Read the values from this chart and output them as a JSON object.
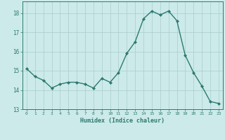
{
  "x": [
    0,
    1,
    2,
    3,
    4,
    5,
    6,
    7,
    8,
    9,
    10,
    11,
    12,
    13,
    14,
    15,
    16,
    17,
    18,
    19,
    20,
    21,
    22,
    23
  ],
  "y": [
    15.1,
    14.7,
    14.5,
    14.1,
    14.3,
    14.4,
    14.4,
    14.3,
    14.1,
    14.6,
    14.4,
    14.9,
    15.9,
    16.5,
    17.7,
    18.1,
    17.9,
    18.1,
    17.6,
    15.8,
    14.9,
    14.2,
    13.4,
    13.3
  ],
  "line_color": "#2d7a6e",
  "marker": "D",
  "markersize": 2.2,
  "linewidth": 1.0,
  "bg_color": "#cceaea",
  "grid_color": "#aacccc",
  "xlabel": "Humidex (Indice chaleur)",
  "xlabel_color": "#2d7a6e",
  "tick_color": "#2d7a6e",
  "ylim": [
    13,
    18.6
  ],
  "xlim": [
    -0.5,
    23.5
  ],
  "yticks": [
    13,
    14,
    15,
    16,
    17,
    18
  ],
  "xticks": [
    0,
    1,
    2,
    3,
    4,
    5,
    6,
    7,
    8,
    9,
    10,
    11,
    12,
    13,
    14,
    15,
    16,
    17,
    18,
    19,
    20,
    21,
    22,
    23
  ],
  "spine_color": "#2d7a6e"
}
